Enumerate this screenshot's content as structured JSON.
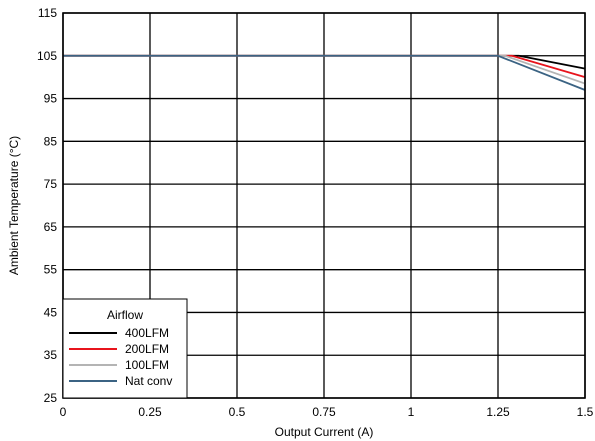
{
  "chart_data": {
    "type": "line",
    "title": "",
    "xlabel": "Output Current (A)",
    "ylabel": "Ambient Temperature (°C)",
    "xlim": [
      0,
      1.5
    ],
    "ylim": [
      25,
      115
    ],
    "xticks": [
      0,
      0.25,
      0.5,
      0.75,
      1,
      1.25,
      1.5
    ],
    "xtick_labels": [
      "0",
      "0.25",
      "0.5",
      "0.75",
      "1",
      "1.25",
      "1.5"
    ],
    "yticks": [
      25,
      35,
      45,
      55,
      65,
      75,
      85,
      95,
      105,
      115
    ],
    "ytick_labels": [
      "25",
      "35",
      "45",
      "55",
      "65",
      "75",
      "85",
      "95",
      "105",
      "115"
    ],
    "grid": true,
    "legend": {
      "title": "Airflow",
      "position": "bottom-left"
    },
    "series": [
      {
        "name": "400LFM",
        "color": "#000000",
        "x": [
          0,
          1.31,
          1.5
        ],
        "y": [
          105,
          105,
          102
        ]
      },
      {
        "name": "200LFM",
        "color": "#e8141c",
        "x": [
          0,
          1.29,
          1.5
        ],
        "y": [
          105,
          105,
          100
        ]
      },
      {
        "name": "100LFM",
        "color": "#b4b4b4",
        "x": [
          0,
          1.27,
          1.5
        ],
        "y": [
          105,
          105,
          98.5
        ]
      },
      {
        "name": "Nat conv",
        "color": "#3b6383",
        "x": [
          0,
          1.25,
          1.5
        ],
        "y": [
          105,
          105,
          97
        ]
      }
    ]
  }
}
